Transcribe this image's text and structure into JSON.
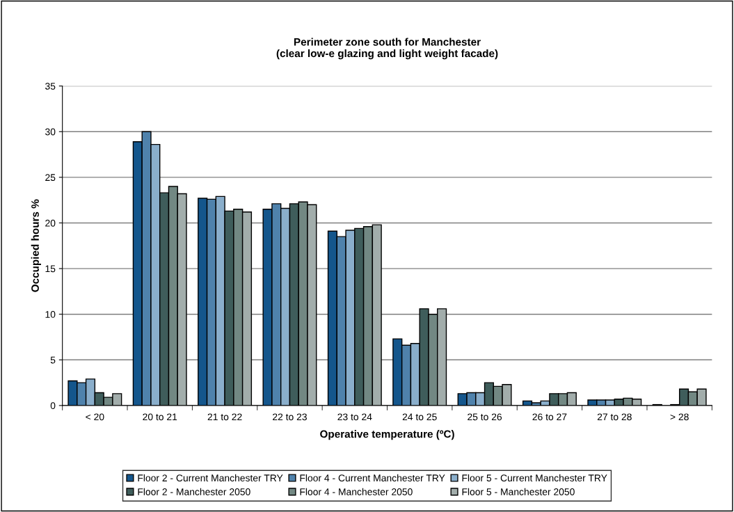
{
  "chart_data": {
    "type": "bar",
    "title": "Perimeter zone south for Manchester\n(clear low-e glazing and light weight facade)",
    "xlabel": "Operative temperature (ºC)",
    "ylabel": "Occupied hours %",
    "categories": [
      "< 20",
      "20 to 21",
      "21 to 22",
      "22 to 23",
      "23 to 24",
      "24 to 25",
      "25 to 26",
      "26 to 27",
      "27 to 28",
      "> 28"
    ],
    "series": [
      {
        "name": "Floor 2 - Current Manchester TRY",
        "color": "#14568c",
        "values": [
          2.7,
          28.9,
          22.7,
          21.5,
          19.1,
          7.3,
          1.3,
          0.5,
          0.6,
          0.1
        ]
      },
      {
        "name": "Floor 4 - Current Manchester TRY",
        "color": "#4f82ac",
        "values": [
          2.5,
          30.0,
          22.6,
          22.1,
          18.5,
          6.6,
          1.4,
          0.3,
          0.6,
          null
        ]
      },
      {
        "name": "Floor 5 - Current Manchester TRY",
        "color": "#8aaecb",
        "values": [
          2.9,
          28.6,
          22.9,
          21.6,
          19.2,
          6.8,
          1.4,
          0.5,
          0.6,
          0.1
        ]
      },
      {
        "name": "Floor 2 - Manchester 2050",
        "color": "#3f5d5b",
        "values": [
          1.4,
          23.3,
          21.3,
          22.1,
          19.4,
          10.6,
          2.5,
          1.3,
          0.7,
          1.8
        ]
      },
      {
        "name": "Floor 4 - Manchester 2050",
        "color": "#728883",
        "values": [
          0.9,
          24.0,
          21.5,
          22.3,
          19.6,
          10.0,
          2.1,
          1.3,
          0.8,
          1.5
        ]
      },
      {
        "name": "Floor 5 - Manchester 2050",
        "color": "#a2adab",
        "values": [
          1.3,
          23.2,
          21.2,
          22.0,
          19.8,
          10.6,
          2.3,
          1.4,
          0.7,
          1.8
        ]
      }
    ],
    "ylim": [
      0,
      35
    ],
    "yticks": [
      0,
      5,
      10,
      15,
      20,
      25,
      30,
      35
    ],
    "grid": "y",
    "legend": "bottom"
  }
}
